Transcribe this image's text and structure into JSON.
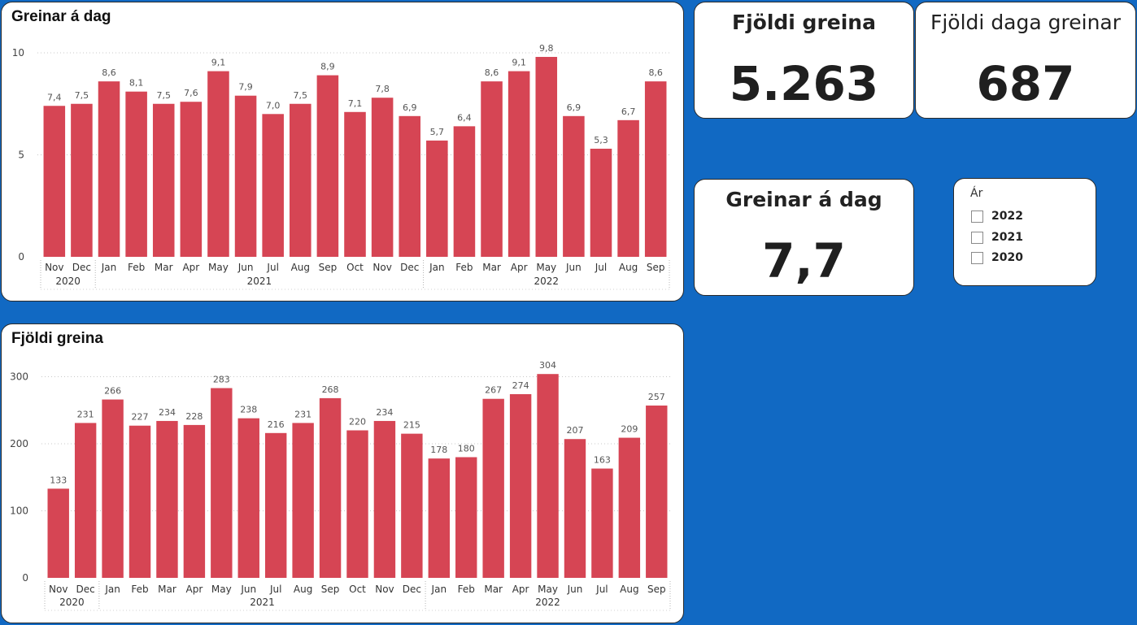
{
  "colors": {
    "background": "#1169c3",
    "bar": "#d64554",
    "panel": "#ffffff"
  },
  "chart_data": [
    {
      "type": "bar",
      "title": "Greinar á dag",
      "categories": [
        "Nov",
        "Dec",
        "Jan",
        "Feb",
        "Mar",
        "Apr",
        "May",
        "Jun",
        "Jul",
        "Aug",
        "Sep",
        "Oct",
        "Nov",
        "Dec",
        "Jan",
        "Feb",
        "Mar",
        "Apr",
        "May",
        "Jun",
        "Jul",
        "Aug",
        "Sep"
      ],
      "year_groups": [
        {
          "label": "2020",
          "count": 2
        },
        {
          "label": "2021",
          "count": 12
        },
        {
          "label": "2022",
          "count": 9
        }
      ],
      "values": [
        7.4,
        7.5,
        8.6,
        8.1,
        7.5,
        7.6,
        9.1,
        7.9,
        7.0,
        7.5,
        8.9,
        7.1,
        7.8,
        6.9,
        5.7,
        6.4,
        8.6,
        9.1,
        9.8,
        6.9,
        5.3,
        6.7,
        8.6
      ],
      "value_labels": [
        "7,4",
        "7,5",
        "8,6",
        "8,1",
        "7,5",
        "7,6",
        "9,1",
        "7,9",
        "7,0",
        "7,5",
        "8,9",
        "7,1",
        "7,8",
        "6,9",
        "5,7",
        "6,4",
        "8,6",
        "9,1",
        "9,8",
        "6,9",
        "5,3",
        "6,7",
        "8,6"
      ],
      "ylim": [
        0,
        10
      ],
      "yticks": [
        0,
        5,
        10
      ],
      "ytick_labels": [
        "0",
        "5",
        "10"
      ],
      "grid": true,
      "xlabel": "",
      "ylabel": ""
    },
    {
      "type": "bar",
      "title": "Fjöldi greina",
      "categories": [
        "Nov",
        "Dec",
        "Jan",
        "Feb",
        "Mar",
        "Apr",
        "May",
        "Jun",
        "Jul",
        "Aug",
        "Sep",
        "Oct",
        "Nov",
        "Dec",
        "Jan",
        "Feb",
        "Mar",
        "Apr",
        "May",
        "Jun",
        "Jul",
        "Aug",
        "Sep"
      ],
      "year_groups": [
        {
          "label": "2020",
          "count": 2
        },
        {
          "label": "2021",
          "count": 12
        },
        {
          "label": "2022",
          "count": 9
        }
      ],
      "values": [
        133,
        231,
        266,
        227,
        234,
        228,
        283,
        238,
        216,
        231,
        268,
        220,
        234,
        215,
        178,
        180,
        267,
        274,
        304,
        207,
        163,
        209,
        257
      ],
      "value_labels": [
        "133",
        "231",
        "266",
        "227",
        "234",
        "228",
        "283",
        "238",
        "216",
        "231",
        "268",
        "220",
        "234",
        "215",
        "178",
        "180",
        "267",
        "274",
        "304",
        "207",
        "163",
        "209",
        "257"
      ],
      "ylim": [
        0,
        320
      ],
      "yticks": [
        0,
        100,
        200,
        300
      ],
      "ytick_labels": [
        "0",
        "100",
        "200",
        "300"
      ],
      "grid": true,
      "xlabel": "",
      "ylabel": ""
    }
  ],
  "cards": {
    "total_articles": {
      "title": "Fjöldi greina",
      "value": "5.263"
    },
    "days_with_articles": {
      "title": "Fjöldi daga greinar",
      "value": "687"
    },
    "articles_per_day": {
      "title": "Greinar á dag",
      "value": "7,7"
    }
  },
  "slicer": {
    "title": "Ár",
    "options": [
      {
        "label": "2022",
        "checked": false
      },
      {
        "label": "2021",
        "checked": false
      },
      {
        "label": "2020",
        "checked": false
      }
    ]
  }
}
